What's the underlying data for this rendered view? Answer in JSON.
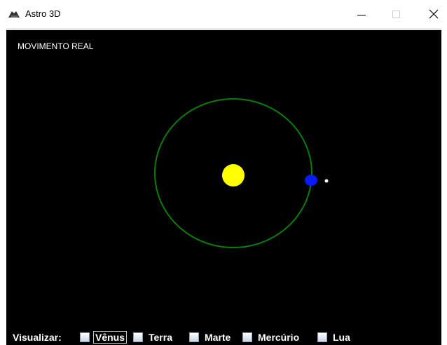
{
  "window": {
    "title": "Astro 3D"
  },
  "canvas": {
    "label": "MOVIMENTO REAL"
  },
  "controls": {
    "label": "Visualizar:",
    "checkboxes": [
      "Vênus",
      "Terra",
      "Marte",
      "Mercúrio",
      "Lua"
    ]
  }
}
